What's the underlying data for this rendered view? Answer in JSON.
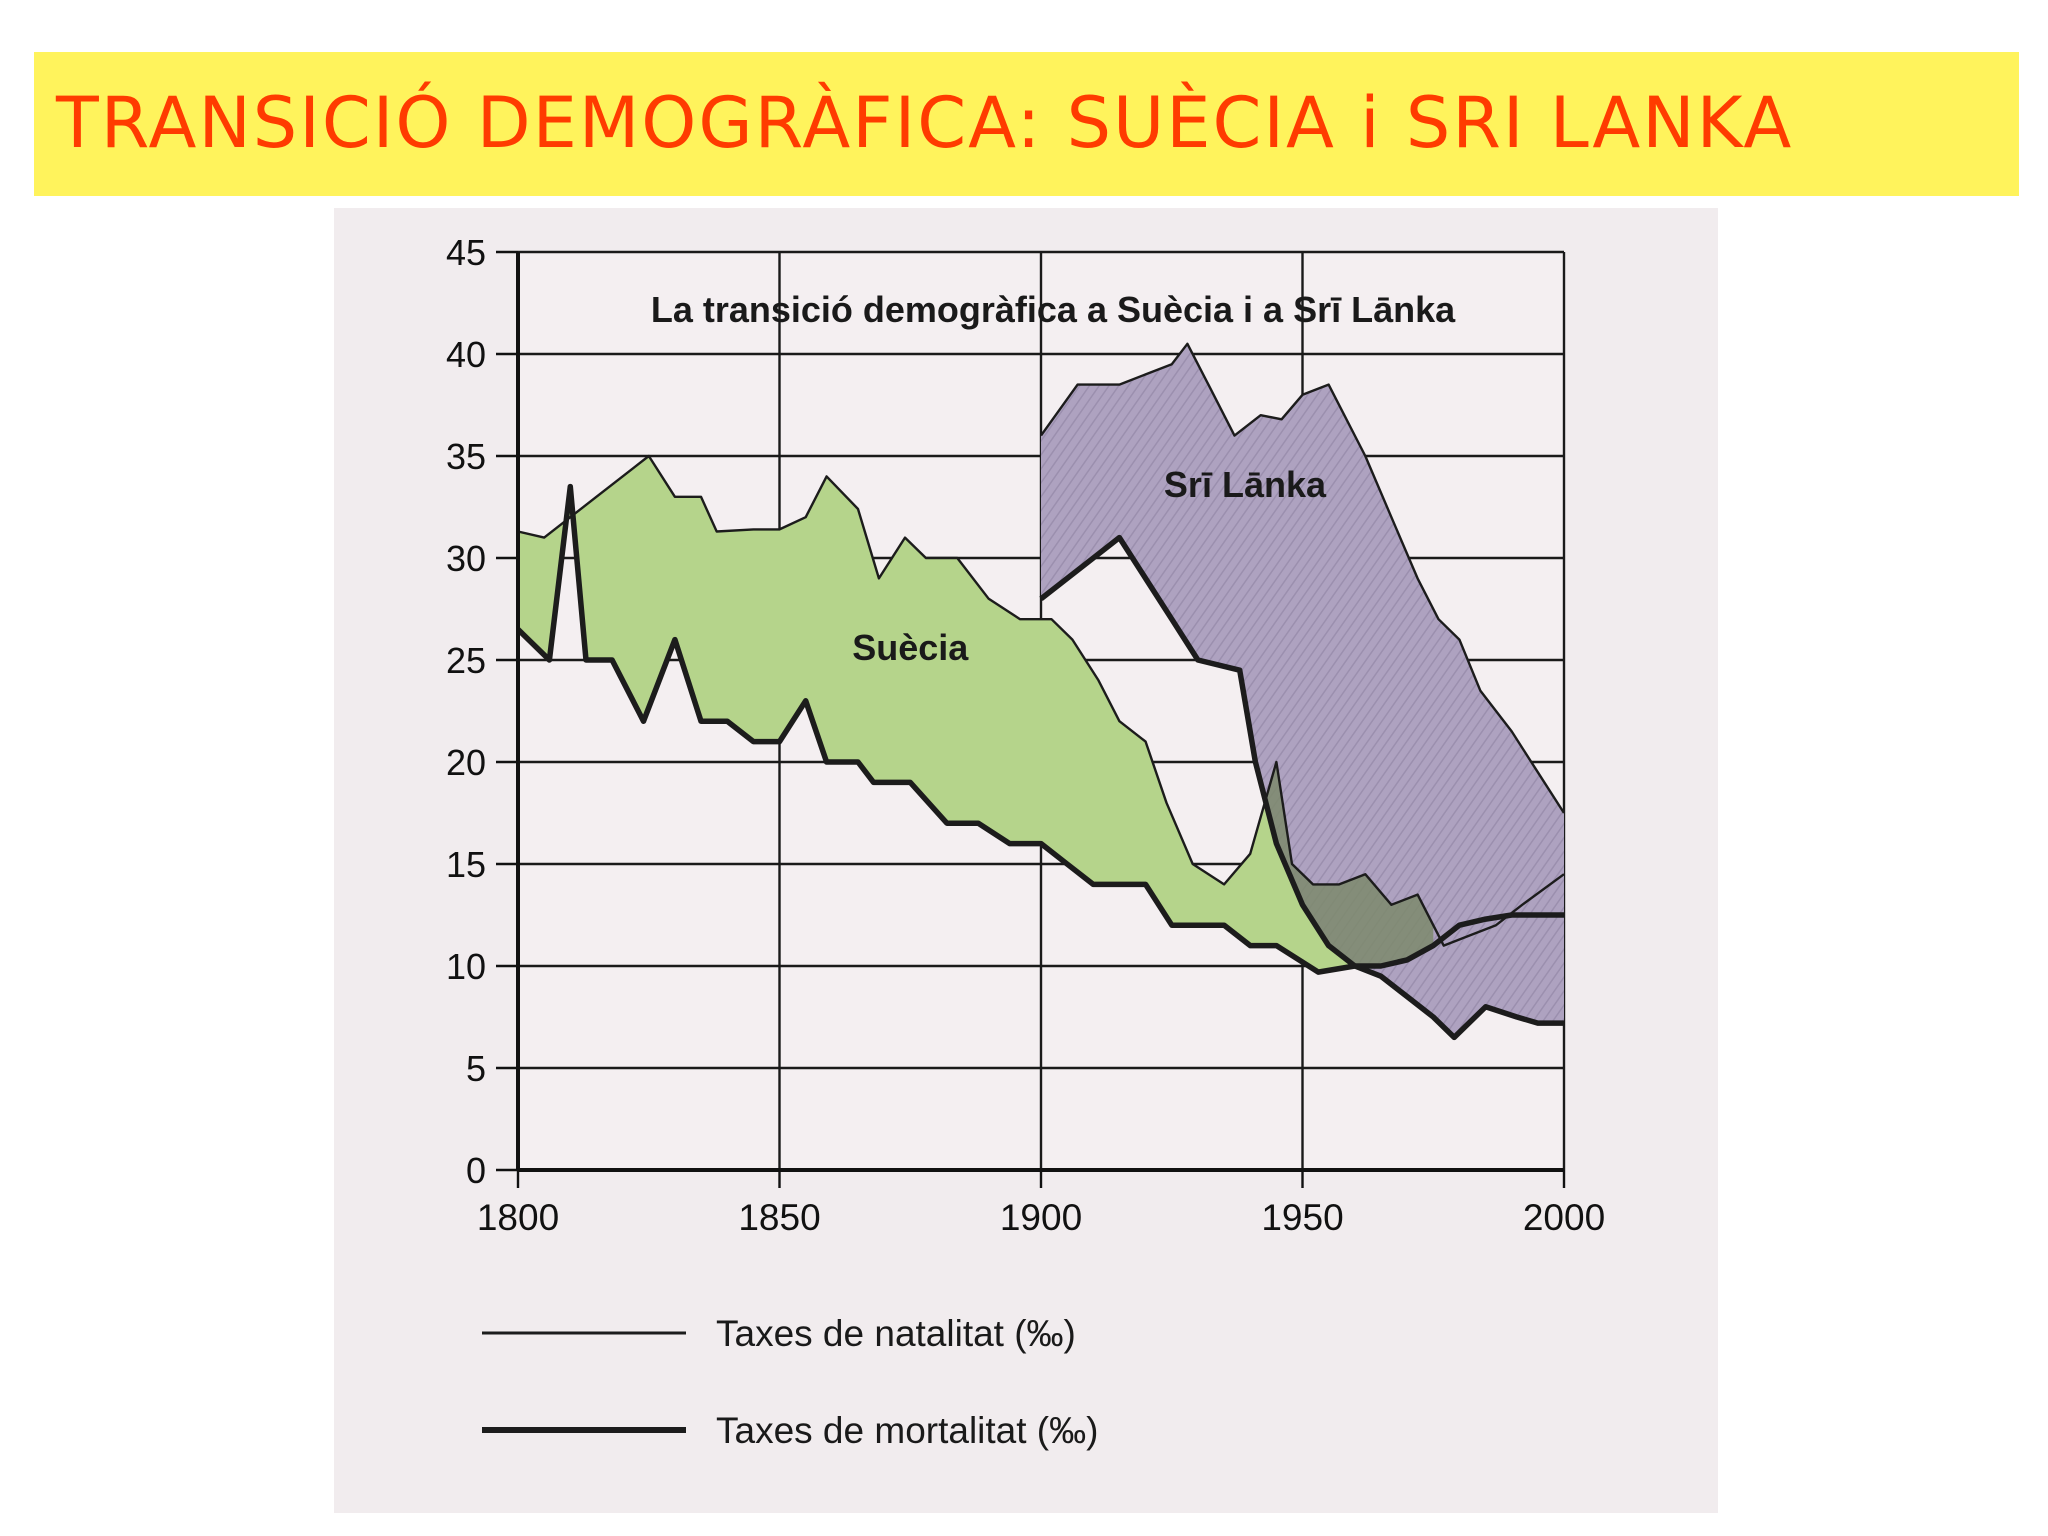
{
  "banner": {
    "title": "TRANSICIÓ DEMOGRÀFICA: SUÈCIA i SRI LANKA"
  },
  "colors": {
    "banner": "#fff35c",
    "banner_text": "#ff3b00",
    "sweden_fill": "#b5d48b",
    "srilanka_fill": "#aea2c0",
    "overlap_fill": "#7d8a6c",
    "line": "#1c1c1c"
  },
  "chart_data": {
    "type": "area",
    "title": "La transició demogràfica a Suècia i a Srī Lānka",
    "xlabel": "",
    "ylabel": "",
    "xlim": [
      1800,
      2000
    ],
    "ylim": [
      0,
      45
    ],
    "x_ticks": [
      1800,
      1850,
      1900,
      1950,
      2000
    ],
    "y_ticks": [
      0,
      5,
      10,
      15,
      20,
      25,
      30,
      35,
      40,
      45
    ],
    "grid": true,
    "legend": {
      "position": "bottom",
      "entries": [
        {
          "label": "Taxes de natalitat (‰)",
          "style": "thin"
        },
        {
          "label": "Taxes de mortalitat (‰)",
          "style": "thick"
        }
      ]
    },
    "series": [
      {
        "name": "Suècia",
        "label_at": [
          1875,
          25
        ],
        "birth": [
          [
            1800,
            31.3
          ],
          [
            1805,
            31
          ],
          [
            1810,
            32
          ],
          [
            1815,
            33
          ],
          [
            1820,
            34
          ],
          [
            1825,
            35
          ],
          [
            1830,
            33
          ],
          [
            1835,
            33
          ],
          [
            1838,
            31.3
          ],
          [
            1845,
            31.4
          ],
          [
            1850,
            31.4
          ],
          [
            1855,
            32
          ],
          [
            1859,
            34
          ],
          [
            1865,
            32.4
          ],
          [
            1869,
            29
          ],
          [
            1874,
            31
          ],
          [
            1878,
            30
          ],
          [
            1884,
            30
          ],
          [
            1890,
            28
          ],
          [
            1896,
            27
          ],
          [
            1902,
            27
          ],
          [
            1906,
            26
          ],
          [
            1911,
            24
          ],
          [
            1915,
            22
          ],
          [
            1920,
            21
          ],
          [
            1924,
            18
          ],
          [
            1929,
            15
          ],
          [
            1935,
            14
          ],
          [
            1940,
            15.5
          ],
          [
            1945,
            20
          ],
          [
            1948,
            15
          ],
          [
            1952,
            14
          ],
          [
            1957,
            14
          ],
          [
            1962,
            14.5
          ],
          [
            1967,
            13
          ],
          [
            1972,
            13.5
          ],
          [
            1977,
            11
          ],
          [
            1982,
            11.5
          ],
          [
            1987,
            12
          ],
          [
            1992,
            13
          ],
          [
            2000,
            14.5
          ]
        ],
        "death": [
          [
            1800,
            26.5
          ],
          [
            1806,
            25
          ],
          [
            1810,
            33.5
          ],
          [
            1813,
            25
          ],
          [
            1818,
            25
          ],
          [
            1824,
            22
          ],
          [
            1830,
            26
          ],
          [
            1835,
            22
          ],
          [
            1840,
            22
          ],
          [
            1845,
            21
          ],
          [
            1850,
            21
          ],
          [
            1855,
            23
          ],
          [
            1859,
            20
          ],
          [
            1865,
            20
          ],
          [
            1868,
            19
          ],
          [
            1875,
            19
          ],
          [
            1882,
            17
          ],
          [
            1888,
            17
          ],
          [
            1894,
            16
          ],
          [
            1900,
            16
          ],
          [
            1905,
            15
          ],
          [
            1910,
            14
          ],
          [
            1920,
            14
          ],
          [
            1925,
            12
          ],
          [
            1935,
            12
          ],
          [
            1940,
            11
          ],
          [
            1945,
            11
          ],
          [
            1953,
            9.7
          ],
          [
            1960,
            10
          ],
          [
            1965,
            10
          ],
          [
            1970,
            10.3
          ],
          [
            1975,
            11
          ],
          [
            1980,
            12
          ],
          [
            1985,
            12.3
          ],
          [
            1990,
            12.5
          ],
          [
            1995,
            12.5
          ],
          [
            2000,
            12.5
          ]
        ]
      },
      {
        "name": "Srī Lānka",
        "label_at": [
          1939,
          33
        ],
        "birth": [
          [
            1900,
            36
          ],
          [
            1907,
            38.5
          ],
          [
            1915,
            38.5
          ],
          [
            1920,
            39
          ],
          [
            1925,
            39.5
          ],
          [
            1928,
            40.5
          ],
          [
            1932,
            38.5
          ],
          [
            1937,
            36
          ],
          [
            1942,
            37
          ],
          [
            1946,
            36.8
          ],
          [
            1950,
            38
          ],
          [
            1955,
            38.5
          ],
          [
            1962,
            35
          ],
          [
            1967,
            32
          ],
          [
            1972,
            29
          ],
          [
            1976,
            27
          ],
          [
            1980,
            26
          ],
          [
            1984,
            23.5
          ],
          [
            1990,
            21.5
          ],
          [
            1995,
            19.5
          ],
          [
            2000,
            17.5
          ]
        ],
        "death": [
          [
            1900,
            28
          ],
          [
            1910,
            30
          ],
          [
            1915,
            31
          ],
          [
            1925,
            27
          ],
          [
            1930,
            25
          ],
          [
            1938,
            24.5
          ],
          [
            1941,
            20
          ],
          [
            1945,
            16
          ],
          [
            1950,
            13
          ],
          [
            1955,
            11
          ],
          [
            1960,
            10
          ],
          [
            1965,
            9.5
          ],
          [
            1970,
            8.5
          ],
          [
            1975,
            7.5
          ],
          [
            1979,
            6.5
          ],
          [
            1985,
            8
          ],
          [
            1991,
            7.5
          ],
          [
            1995,
            7.2
          ],
          [
            2000,
            7.2
          ]
        ]
      }
    ]
  }
}
